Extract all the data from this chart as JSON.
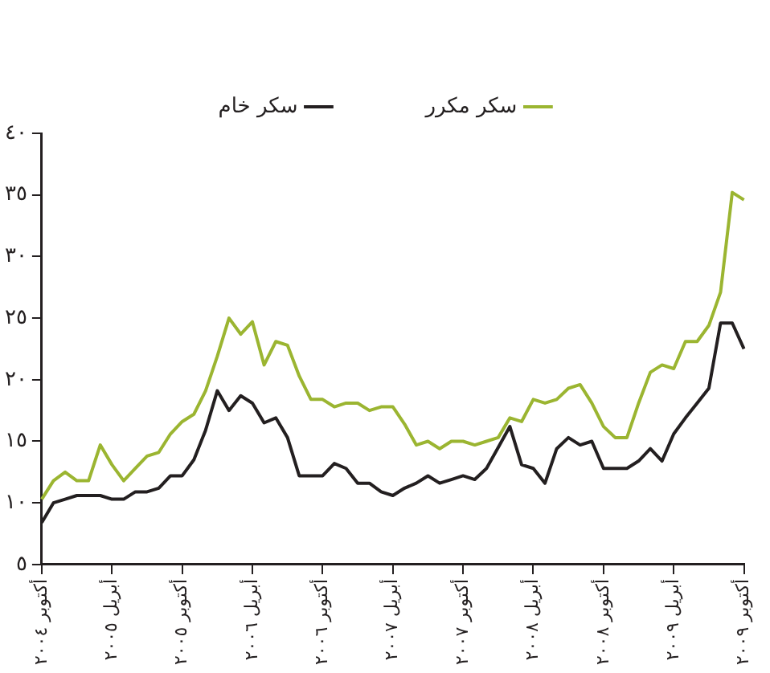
{
  "chart_data": {
    "type": "line",
    "categories": [
      "أكتوبر ٢٠٠٤",
      null,
      null,
      null,
      null,
      null,
      "أبريل ٢٠٠٥",
      null,
      null,
      null,
      null,
      null,
      "أكتوبر ٢٠٠٥",
      null,
      null,
      null,
      null,
      null,
      "أبريل ٢٠٠٦",
      null,
      null,
      null,
      null,
      null,
      "أكتوبر ٢٠٠٦",
      null,
      null,
      null,
      null,
      null,
      "أبريل ٢٠٠٧",
      null,
      null,
      null,
      null,
      null,
      "أكتوبر ٢٠٠٧",
      null,
      null,
      null,
      null,
      null,
      "أبريل ٢٠٠٨",
      null,
      null,
      null,
      null,
      null,
      "أكتوبر ٢٠٠٨",
      null,
      null,
      null,
      null,
      null,
      "أبريل ٢٠٠٩",
      null,
      null,
      null,
      null,
      null,
      "أكتوبر ٢٠٠٩"
    ],
    "series": [
      {
        "name": "سكر مكرر",
        "color": "#9bb531",
        "values": [
          10.3,
          11.8,
          12.5,
          11.8,
          11.8,
          14.7,
          13.1,
          11.8,
          12.8,
          13.8,
          14.1,
          15.6,
          16.6,
          17.2,
          19.1,
          21.9,
          25.0,
          23.7,
          24.7,
          21.2,
          23.1,
          22.8,
          20.3,
          18.4,
          18.4,
          17.8,
          18.1,
          18.1,
          17.5,
          17.8,
          17.8,
          16.4,
          14.7,
          15.0,
          14.4,
          15.0,
          15.0,
          14.7,
          15.0,
          15.3,
          16.9,
          16.6,
          18.4,
          18.1,
          18.4,
          19.3,
          19.6,
          18.1,
          16.2,
          15.3,
          15.3,
          18.1,
          20.6,
          21.2,
          20.9,
          23.1,
          23.1,
          24.4,
          27.1,
          35.2,
          34.6
        ]
      },
      {
        "name": "سكر خام",
        "color": "#231f20",
        "values": [
          8.4,
          10.0,
          10.3,
          10.6,
          10.6,
          10.6,
          10.3,
          10.3,
          10.9,
          10.9,
          11.2,
          12.2,
          12.2,
          13.5,
          15.9,
          19.1,
          17.5,
          18.7,
          18.1,
          16.5,
          16.9,
          15.3,
          12.2,
          12.2,
          12.2,
          13.2,
          12.8,
          11.6,
          11.6,
          10.9,
          10.6,
          11.2,
          11.6,
          12.2,
          11.6,
          11.9,
          12.2,
          11.9,
          12.8,
          14.5,
          16.2,
          13.1,
          12.8,
          11.6,
          14.4,
          15.3,
          14.7,
          15.0,
          12.8,
          12.8,
          12.8,
          13.4,
          14.4,
          13.4,
          15.6,
          16.9,
          18.1,
          19.3,
          24.6,
          24.6,
          22.5
        ]
      }
    ],
    "ylim": [
      5,
      40
    ],
    "yticks": [
      {
        "value": 5,
        "label": "٥"
      },
      {
        "value": 10,
        "label": "١٠"
      },
      {
        "value": 15,
        "label": "١٥"
      },
      {
        "value": 20,
        "label": "٢٠"
      },
      {
        "value": 25,
        "label": "٢٥"
      },
      {
        "value": 30,
        "label": "٣٠"
      },
      {
        "value": 35,
        "label": "٣٥"
      },
      {
        "value": 40,
        "label": "٤٠"
      }
    ],
    "grid": false,
    "legend": "top",
    "marker": "none",
    "line_style": "solid"
  }
}
